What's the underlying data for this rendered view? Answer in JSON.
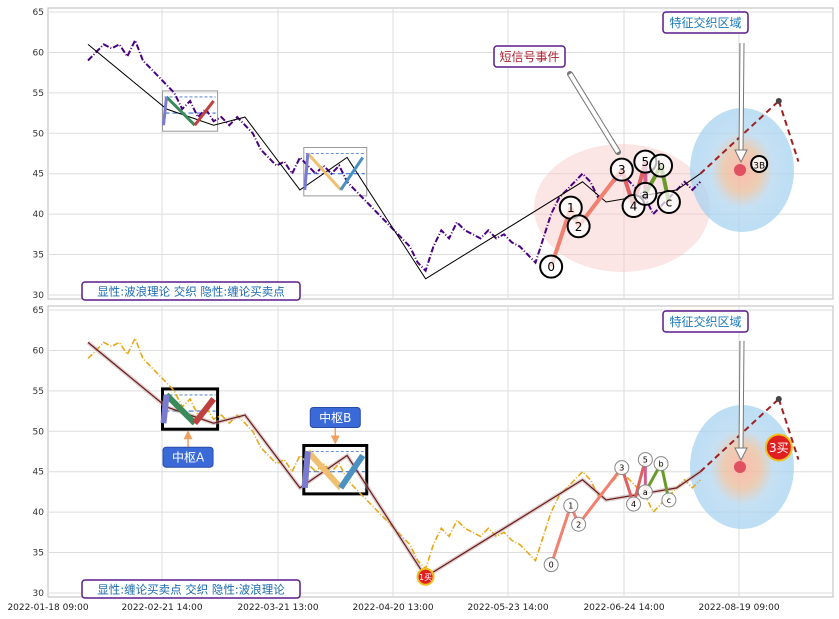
{
  "chart_data": [
    {
      "type": "line",
      "panel": "top",
      "y_ticks": [
        30,
        35,
        40,
        45,
        50,
        55,
        60,
        65
      ],
      "ylim": [
        29.5,
        65.5
      ],
      "x_ticks": [
        "2022-01-18 09:00",
        "2022-02-21 14:00",
        "2022-03-21 13:00",
        "2022-04-20 13:00",
        "2022-05-23 14:00",
        "2022-06-24 14:00",
        "2022-08-19 09:00"
      ],
      "grid": true,
      "price_color": "#4b0082",
      "price_style": "dash-dot",
      "price": [
        [
          0,
          59
        ],
        [
          1,
          60
        ],
        [
          2,
          61
        ],
        [
          3,
          60.5
        ],
        [
          4,
          61
        ],
        [
          5,
          59.5
        ],
        [
          6,
          61.5
        ],
        [
          7,
          59
        ],
        [
          8,
          58
        ],
        [
          9,
          57
        ],
        [
          10,
          56
        ],
        [
          11,
          55
        ],
        [
          12,
          53
        ],
        [
          13,
          54
        ],
        [
          14,
          52
        ],
        [
          15,
          53
        ],
        [
          16,
          51.5
        ],
        [
          17,
          52
        ],
        [
          18,
          51
        ],
        [
          19,
          52
        ],
        [
          20,
          51
        ],
        [
          21,
          50
        ],
        [
          22,
          48
        ],
        [
          23,
          47
        ],
        [
          24,
          46
        ],
        [
          25,
          46.5
        ],
        [
          26,
          45
        ],
        [
          27,
          47
        ],
        [
          28,
          46
        ],
        [
          29,
          45
        ],
        [
          30,
          46
        ],
        [
          31,
          45
        ],
        [
          32,
          46
        ],
        [
          33,
          44
        ],
        [
          34,
          43
        ],
        [
          35,
          42
        ],
        [
          36,
          41
        ],
        [
          37,
          40
        ],
        [
          38,
          39
        ],
        [
          39,
          38
        ],
        [
          40,
          37
        ],
        [
          41,
          36
        ],
        [
          42,
          34
        ],
        [
          43,
          33
        ],
        [
          44,
          36
        ],
        [
          45,
          38
        ],
        [
          46,
          37
        ],
        [
          47,
          39
        ],
        [
          48,
          38
        ],
        [
          49,
          37.5
        ],
        [
          50,
          37
        ],
        [
          51,
          38
        ],
        [
          52,
          37
        ],
        [
          53,
          37.5
        ],
        [
          54,
          36.5
        ],
        [
          55,
          36
        ],
        [
          56,
          35
        ],
        [
          57,
          34
        ],
        [
          58,
          37
        ],
        [
          59,
          40
        ],
        [
          60,
          42
        ],
        [
          61,
          43
        ],
        [
          62,
          44
        ],
        [
          63,
          45
        ],
        [
          64,
          44
        ],
        [
          65,
          42
        ],
        [
          66,
          43
        ],
        [
          67,
          44
        ],
        [
          68,
          45
        ],
        [
          69,
          44
        ],
        [
          70,
          43
        ],
        [
          71,
          42
        ],
        [
          72,
          40
        ],
        [
          73,
          41
        ],
        [
          74,
          42
        ],
        [
          75,
          43
        ],
        [
          76,
          44
        ],
        [
          77,
          43
        ],
        [
          78,
          44
        ]
      ],
      "bi": [
        [
          0,
          61
        ],
        [
          10,
          53
        ],
        [
          16,
          51
        ],
        [
          20,
          52
        ],
        [
          27,
          43
        ],
        [
          33,
          47
        ],
        [
          43,
          32
        ],
        [
          63,
          44
        ],
        [
          66,
          41.5
        ],
        [
          75,
          43
        ],
        [
          78,
          45
        ],
        [
          88,
          54
        ]
      ],
      "bi_color": "#000000",
      "zhongshu": [
        {
          "x": [
            10,
            16
          ],
          "y": [
            51,
            54.5
          ],
          "mid": 52.5
        },
        {
          "x": [
            28,
            35
          ],
          "y": [
            43,
            47.5
          ],
          "mid": 45
        }
      ],
      "wave_labels": [
        {
          "label": "0",
          "x": 59,
          "y": 33.5
        },
        {
          "label": "1",
          "x": 61.5,
          "y": 40.8
        },
        {
          "label": "2",
          "x": 62.5,
          "y": 38.5
        },
        {
          "label": "3",
          "x": 68,
          "y": 45.5
        },
        {
          "label": "4",
          "x": 69.5,
          "y": 41
        },
        {
          "label": "5",
          "x": 71,
          "y": 46.5
        },
        {
          "label": "a",
          "x": 71,
          "y": 42.5
        },
        {
          "label": "b",
          "x": 73,
          "y": 46
        },
        {
          "label": "c",
          "x": 74,
          "y": 41.5
        },
        {
          "label": "3B",
          "x": 85.5,
          "y": 46.2
        }
      ],
      "annotations": {
        "event": "短信号事件",
        "region": "特征交织区域"
      },
      "footer": "显性:波浪理论 交织 隐性:缠论买卖点"
    },
    {
      "type": "line",
      "panel": "bottom",
      "y_ticks": [
        30,
        35,
        40,
        45,
        50,
        55,
        60,
        65
      ],
      "ylim": [
        29.5,
        65.5
      ],
      "x_ticks": [
        "2022-01-18 09:00",
        "2022-02-21 14:00",
        "2022-03-21 13:00",
        "2022-04-20 13:00",
        "2022-05-23 14:00",
        "2022-06-24 14:00",
        "2022-08-19 09:00"
      ],
      "grid": true,
      "price_color": "#e6a817",
      "price_style": "dash-dot",
      "bi": [
        [
          0,
          61
        ],
        [
          10,
          53
        ],
        [
          16,
          51
        ],
        [
          20,
          52
        ],
        [
          27,
          43
        ],
        [
          33,
          47
        ],
        [
          43,
          32
        ],
        [
          63,
          44
        ],
        [
          66,
          41.5
        ],
        [
          75,
          43
        ],
        [
          78,
          45
        ],
        [
          88,
          54
        ]
      ],
      "zhongshu": [
        {
          "label": "中枢A",
          "x": [
            10,
            16
          ],
          "y": [
            51,
            54.5
          ],
          "mid": 52.5
        },
        {
          "label": "中枢B",
          "x": [
            28,
            35
          ],
          "y": [
            43,
            47.5
          ],
          "mid": 45
        }
      ],
      "wave_labels": [
        {
          "label": "0",
          "x": 59,
          "y": 33.5
        },
        {
          "label": "1",
          "x": 61.5,
          "y": 40.8
        },
        {
          "label": "2",
          "x": 62.5,
          "y": 38.5
        },
        {
          "label": "3",
          "x": 68,
          "y": 45.5
        },
        {
          "label": "4",
          "x": 69.5,
          "y": 41
        },
        {
          "label": "5",
          "x": 71,
          "y": 46.5
        },
        {
          "label": "a",
          "x": 71,
          "y": 42.5
        },
        {
          "label": "b",
          "x": 73,
          "y": 46
        },
        {
          "label": "c",
          "x": 74,
          "y": 41.5
        }
      ],
      "buy_points": [
        {
          "label": "1买",
          "x": 43,
          "y": 32
        },
        {
          "label": "3买",
          "x": 88,
          "y": 48
        }
      ],
      "annotations": {
        "region": "特征交织区域"
      },
      "footer": "显性:缠论买卖点 交织 隐性:波浪理论"
    }
  ]
}
